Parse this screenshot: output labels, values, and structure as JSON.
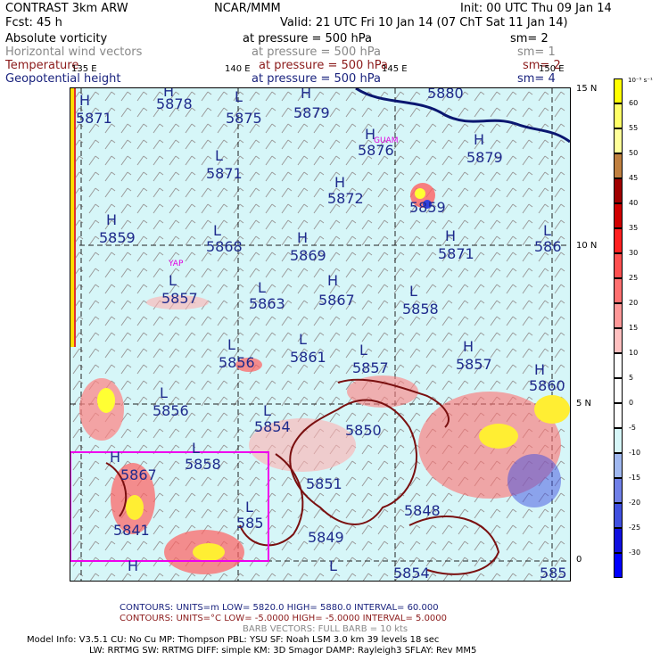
{
  "header": {
    "model": "CONTRAST   3km ARW",
    "forecast": "Fcst:    45 h",
    "center": "NCAR/MMM",
    "init": "Init: 00 UTC Thu 09 Jan 14",
    "valid": "Valid: 21 UTC Fri 10 Jan 14 (07 ChT Sat 11 Jan 14)"
  },
  "fields": [
    {
      "name": "Absolute vorticity",
      "pressure": "at pressure =  500 hPa",
      "sm": "sm= 2",
      "color": "#000000"
    },
    {
      "name": "Horizontal wind vectors",
      "pressure": "at pressure =  500 hPa",
      "sm": "sm= 1",
      "color": "#888888"
    },
    {
      "name": "Temperature",
      "pressure": "at pressure =  500 hPa",
      "sm": "sm= 2",
      "color": "#8b1a1a"
    },
    {
      "name": "Geopotential height",
      "pressure": "at pressure =  500 hPa",
      "sm": "sm= 4",
      "color": "#1a237e"
    }
  ],
  "lon_labels": [
    "135 E",
    "140 E",
    "145 E",
    "150 E"
  ],
  "lat_labels": [
    "15 N",
    "10 N",
    "5 N",
    "0"
  ],
  "colorbar": {
    "unit": "10⁻⁵ s⁻¹",
    "labels": [
      "60",
      "55",
      "50",
      "45",
      "40",
      "35",
      "30",
      "25",
      "20",
      "15",
      "10",
      "5",
      "0",
      "-5",
      "-10",
      "-15",
      "-20",
      "-25",
      "-30"
    ],
    "colors": [
      "#ffff00",
      "#ffff66",
      "#ffff99",
      "#c08040",
      "#a00000",
      "#d00000",
      "#ff2020",
      "#ff5050",
      "#ff7070",
      "#ff9898",
      "#ffc0c0",
      "#ffffff",
      "#ffffff",
      "#ffffff",
      "#d6f6f8",
      "#a0b8f0",
      "#7080e8",
      "#4050e0",
      "#1010e0",
      "#0000ff"
    ]
  },
  "height_labels": [
    {
      "text": "5871"
    },
    {
      "text": "5878"
    },
    {
      "text": "5875"
    },
    {
      "text": "5879"
    },
    {
      "text": "5880"
    },
    {
      "text": "5876"
    },
    {
      "text": "5879"
    },
    {
      "text": "5871"
    },
    {
      "text": "5872"
    },
    {
      "text": "5859"
    },
    {
      "text": "5859"
    },
    {
      "text": "5868"
    },
    {
      "text": "5869"
    },
    {
      "text": "5871"
    },
    {
      "text": "586"
    },
    {
      "text": "5857"
    },
    {
      "text": "5863"
    },
    {
      "text": "5867"
    },
    {
      "text": "5858"
    },
    {
      "text": "5856"
    },
    {
      "text": "5861"
    },
    {
      "text": "5857"
    },
    {
      "text": "5857"
    },
    {
      "text": "5860"
    },
    {
      "text": "5856"
    },
    {
      "text": "5854"
    },
    {
      "text": "5850"
    },
    {
      "text": "5858"
    },
    {
      "text": "5867"
    },
    {
      "text": "5851"
    },
    {
      "text": "5848"
    },
    {
      "text": "5841"
    },
    {
      "text": "585"
    },
    {
      "text": "5849"
    },
    {
      "text": "5854"
    },
    {
      "text": "585"
    }
  ],
  "city_labels": [
    "GUAM",
    "YAP"
  ],
  "footer": {
    "contours1": "CONTOURS:  UNITS=m   LOW=   5820.0         HIGH=  5880.0        INTERVAL=    60.000",
    "contours2": "CONTOURS:  UNITS=°C   LOW= -5.0000         HIGH= -5.0000        INTERVAL=    5.0000",
    "barbs": "BARB VECTORS:  FULL BARB = 10 kts",
    "model_info1": "Model Info: V3.5.1     CU: No Cu     MP: Thompson     PBL: YSU      SF: Noah LSM     3.0 km   39 levels    18 sec",
    "model_info2": "LW: RRTMG    SW: RRTMG   DIFF: simple KM: 3D Smagor DAMP: Rayleigh3   SFLAY: Rev MM5"
  }
}
